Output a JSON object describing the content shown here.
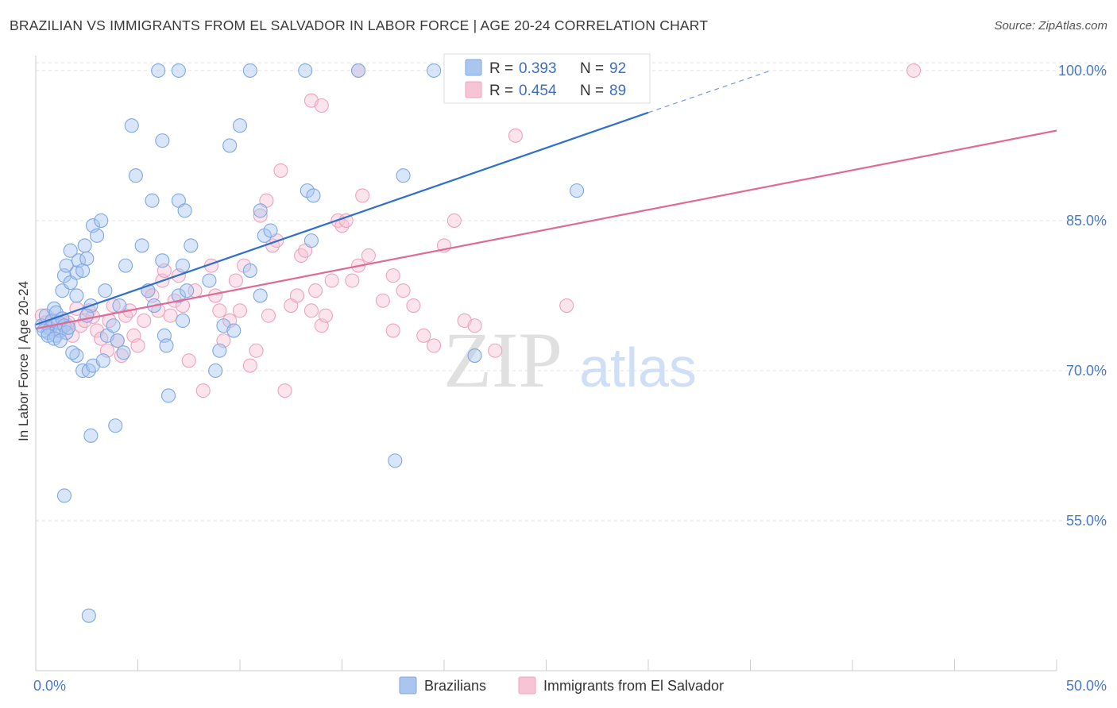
{
  "header": {
    "title": "BRAZILIAN VS IMMIGRANTS FROM EL SALVADOR IN LABOR FORCE | AGE 20-24 CORRELATION CHART",
    "source": "Source: ZipAtlas.com"
  },
  "watermark": {
    "zip": "ZIP",
    "atlas": "atlas"
  },
  "colors": {
    "blue": "#7fa8e3",
    "blue_fill": "#aac6ef",
    "blue_line": "#2f6fcf",
    "pink": "#f0a2bd",
    "pink_fill": "#f7c4d5",
    "pink_line": "#e06a95",
    "tick_text": "#4a78c8",
    "grid": "#dddddd"
  },
  "legend": {
    "r_label": "R =",
    "n_label": "N =",
    "rows": [
      {
        "series": "Brazilians",
        "r": "0.393",
        "n": "92"
      },
      {
        "series": "Immigrants from El Salvador",
        "r": "0.454",
        "n": "89"
      }
    ]
  },
  "chart_data": {
    "type": "scatter",
    "title": "BRAZILIAN VS IMMIGRANTS FROM EL SALVADOR IN LABOR FORCE | AGE 20-24 CORRELATION CHART",
    "xlabel": "",
    "ylabel": "In Labor Force | Age 20-24",
    "xlim": [
      0,
      50
    ],
    "ylim": [
      40,
      101.5
    ],
    "x_tick_labels": [
      "0.0%",
      "50.0%"
    ],
    "y_ticks": [
      55,
      70,
      85,
      100
    ],
    "y_tick_labels": [
      "55.0%",
      "70.0%",
      "85.0%",
      "100.0%"
    ],
    "grid": true,
    "legend_position": "top-center",
    "series": [
      {
        "name": "Brazilians",
        "r": 0.393,
        "n": 92,
        "trend": {
          "x0": 0.0,
          "y0": 74.6,
          "x1": 30.0,
          "y1": 95.8,
          "dashed_to_x": 36.0,
          "dashed_to_y": 100.0
        },
        "points": [
          [
            0.3,
            74.5
          ],
          [
            0.5,
            75.5
          ],
          [
            0.6,
            73.8
          ],
          [
            0.7,
            74.2
          ],
          [
            0.8,
            75.0
          ],
          [
            0.9,
            76.2
          ],
          [
            1.0,
            75.8
          ],
          [
            1.0,
            73.5
          ],
          [
            1.1,
            74.8
          ],
          [
            1.2,
            74.0
          ],
          [
            1.3,
            75.2
          ],
          [
            0.4,
            74.0
          ],
          [
            0.6,
            73.5
          ],
          [
            0.9,
            73.2
          ],
          [
            1.4,
            74.5
          ],
          [
            1.5,
            73.8
          ],
          [
            1.6,
            74.3
          ],
          [
            1.2,
            73.0
          ],
          [
            1.3,
            78.0
          ],
          [
            1.4,
            79.5
          ],
          [
            1.5,
            80.5
          ],
          [
            1.7,
            82.0
          ],
          [
            1.7,
            78.8
          ],
          [
            2.0,
            79.8
          ],
          [
            2.1,
            81.0
          ],
          [
            2.3,
            80.0
          ],
          [
            2.4,
            82.5
          ],
          [
            2.5,
            81.2
          ],
          [
            2.7,
            76.5
          ],
          [
            2.8,
            84.5
          ],
          [
            3.0,
            83.5
          ],
          [
            3.2,
            85.0
          ],
          [
            2.0,
            71.5
          ],
          [
            2.3,
            70.0
          ],
          [
            2.6,
            70.0
          ],
          [
            2.8,
            70.5
          ],
          [
            1.8,
            71.8
          ],
          [
            2.5,
            75.5
          ],
          [
            3.4,
            78.0
          ],
          [
            4.1,
            76.5
          ],
          [
            3.5,
            73.5
          ],
          [
            4.0,
            73.0
          ],
          [
            4.3,
            71.8
          ],
          [
            3.8,
            74.5
          ],
          [
            4.7,
            94.5
          ],
          [
            4.9,
            89.5
          ],
          [
            5.7,
            87.0
          ],
          [
            5.2,
            82.5
          ],
          [
            4.4,
            80.5
          ],
          [
            5.5,
            78.0
          ],
          [
            5.8,
            76.5
          ],
          [
            6.2,
            93.0
          ],
          [
            6.3,
            73.5
          ],
          [
            6.5,
            67.5
          ],
          [
            6.4,
            72.5
          ],
          [
            6.2,
            81.0
          ],
          [
            7.0,
            87.0
          ],
          [
            7.3,
            86.0
          ],
          [
            7.0,
            77.5
          ],
          [
            7.2,
            75.0
          ],
          [
            7.4,
            78.0
          ],
          [
            7.6,
            82.5
          ],
          [
            7.2,
            80.5
          ],
          [
            8.5,
            79.0
          ],
          [
            8.8,
            70.0
          ],
          [
            9.0,
            72.0
          ],
          [
            9.2,
            74.5
          ],
          [
            9.5,
            92.5
          ],
          [
            9.7,
            74.0
          ],
          [
            10.0,
            94.5
          ],
          [
            10.5,
            80.0
          ],
          [
            11.0,
            86.0
          ],
          [
            11.2,
            83.5
          ],
          [
            11.5,
            84.0
          ],
          [
            11.0,
            77.5
          ],
          [
            13.5,
            83.0
          ],
          [
            13.3,
            88.0
          ],
          [
            13.6,
            87.5
          ],
          [
            6.0,
            100.0
          ],
          [
            7.0,
            100.0
          ],
          [
            10.5,
            100.0
          ],
          [
            13.2,
            100.0
          ],
          [
            15.8,
            100.0
          ],
          [
            19.5,
            100.0
          ],
          [
            18.0,
            89.5
          ],
          [
            17.6,
            61.0
          ],
          [
            21.5,
            71.5
          ],
          [
            26.5,
            88.0
          ],
          [
            1.4,
            57.5
          ],
          [
            2.7,
            63.5
          ],
          [
            3.3,
            71.0
          ],
          [
            2.6,
            45.5
          ],
          [
            2.0,
            77.5
          ],
          [
            3.9,
            64.5
          ]
        ]
      },
      {
        "name": "Immigrants from El Salvador",
        "r": 0.454,
        "n": 89,
        "trend": {
          "x0": 0.0,
          "y0": 74.2,
          "x1": 50.0,
          "y1": 94.0
        },
        "points": [
          [
            0.3,
            75.5
          ],
          [
            0.5,
            74.8
          ],
          [
            0.7,
            74.2
          ],
          [
            0.9,
            75.0
          ],
          [
            1.1,
            74.0
          ],
          [
            1.3,
            75.2
          ],
          [
            1.5,
            74.6
          ],
          [
            1.8,
            73.5
          ],
          [
            1.6,
            74.8
          ],
          [
            2.0,
            76.2
          ],
          [
            2.2,
            74.5
          ],
          [
            2.4,
            75.0
          ],
          [
            2.6,
            76.0
          ],
          [
            2.8,
            75.4
          ],
          [
            3.0,
            74.0
          ],
          [
            3.2,
            73.2
          ],
          [
            3.6,
            75.0
          ],
          [
            3.8,
            76.5
          ],
          [
            3.5,
            72.0
          ],
          [
            4.0,
            73.0
          ],
          [
            4.2,
            71.5
          ],
          [
            4.4,
            75.5
          ],
          [
            4.6,
            76.0
          ],
          [
            4.8,
            73.5
          ],
          [
            5.0,
            72.5
          ],
          [
            5.3,
            75.0
          ],
          [
            5.5,
            78.0
          ],
          [
            5.7,
            77.5
          ],
          [
            6.0,
            76.0
          ],
          [
            6.2,
            79.0
          ],
          [
            6.3,
            80.0
          ],
          [
            6.6,
            75.5
          ],
          [
            6.8,
            77.0
          ],
          [
            7.0,
            79.5
          ],
          [
            7.2,
            76.5
          ],
          [
            7.5,
            71.0
          ],
          [
            7.8,
            78.0
          ],
          [
            8.2,
            68.0
          ],
          [
            8.6,
            80.5
          ],
          [
            8.8,
            77.5
          ],
          [
            9.0,
            76.0
          ],
          [
            9.2,
            73.0
          ],
          [
            9.5,
            75.0
          ],
          [
            9.8,
            79.0
          ],
          [
            10.0,
            76.0
          ],
          [
            10.2,
            80.5
          ],
          [
            10.5,
            70.5
          ],
          [
            10.8,
            72.0
          ],
          [
            11.0,
            85.5
          ],
          [
            11.3,
            87.0
          ],
          [
            11.6,
            82.5
          ],
          [
            11.8,
            83.0
          ],
          [
            12.0,
            90.0
          ],
          [
            12.2,
            68.0
          ],
          [
            12.5,
            76.5
          ],
          [
            12.8,
            77.5
          ],
          [
            13.0,
            81.5
          ],
          [
            13.2,
            82.0
          ],
          [
            13.5,
            76.0
          ],
          [
            13.7,
            78.0
          ],
          [
            14.0,
            74.5
          ],
          [
            14.2,
            75.5
          ],
          [
            14.5,
            79.0
          ],
          [
            14.8,
            85.0
          ],
          [
            15.0,
            84.5
          ],
          [
            15.2,
            85.0
          ],
          [
            15.5,
            79.0
          ],
          [
            15.8,
            80.5
          ],
          [
            16.0,
            87.5
          ],
          [
            16.3,
            81.5
          ],
          [
            17.0,
            77.0
          ],
          [
            17.5,
            74.0
          ],
          [
            18.0,
            78.0
          ],
          [
            18.5,
            76.5
          ],
          [
            19.0,
            73.5
          ],
          [
            19.5,
            72.5
          ],
          [
            20.0,
            82.5
          ],
          [
            20.5,
            85.0
          ],
          [
            21.0,
            75.0
          ],
          [
            21.5,
            74.5
          ],
          [
            22.5,
            72.0
          ],
          [
            23.5,
            93.5
          ],
          [
            26.0,
            76.5
          ],
          [
            13.5,
            97.0
          ],
          [
            14.0,
            96.5
          ],
          [
            15.8,
            100.0
          ],
          [
            17.5,
            79.5
          ],
          [
            11.4,
            75.5
          ],
          [
            43.0,
            100.0
          ]
        ]
      }
    ]
  }
}
